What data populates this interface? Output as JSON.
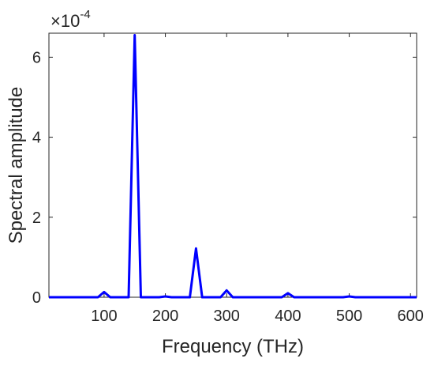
{
  "chart_data": {
    "type": "line",
    "title": "",
    "xlabel": "Frequency (THz)",
    "ylabel": "Spectral amplitude",
    "y_multiplier": {
      "base": "×10",
      "exponent": "-4"
    },
    "xlim": [
      10,
      610
    ],
    "ylim": [
      0,
      6.6
    ],
    "x_ticks": [
      100,
      200,
      300,
      400,
      500,
      600
    ],
    "x_tick_labels": [
      "100",
      "200",
      "300",
      "400",
      "500",
      "600"
    ],
    "y_ticks": [
      0,
      2,
      4,
      6
    ],
    "y_tick_labels": [
      "0",
      "2",
      "4",
      "6"
    ],
    "grid": false,
    "series": [
      {
        "color": "#0000ff",
        "x": [
          10,
          50,
          90,
          100,
          110,
          140,
          150,
          160,
          170,
          190,
          200,
          210,
          240,
          250,
          260,
          290,
          300,
          310,
          390,
          400,
          410,
          450,
          490,
          500,
          510,
          550,
          610
        ],
        "y": [
          0.0,
          0.0,
          0.0,
          0.13,
          0.0,
          0.0,
          6.55,
          0.0,
          0.0,
          0.0,
          0.02,
          0.0,
          0.0,
          1.22,
          0.0,
          0.0,
          0.17,
          0.0,
          0.0,
          0.1,
          0.0,
          0.0,
          0.0,
          0.02,
          0.0,
          0.0,
          0.0
        ]
      }
    ]
  }
}
